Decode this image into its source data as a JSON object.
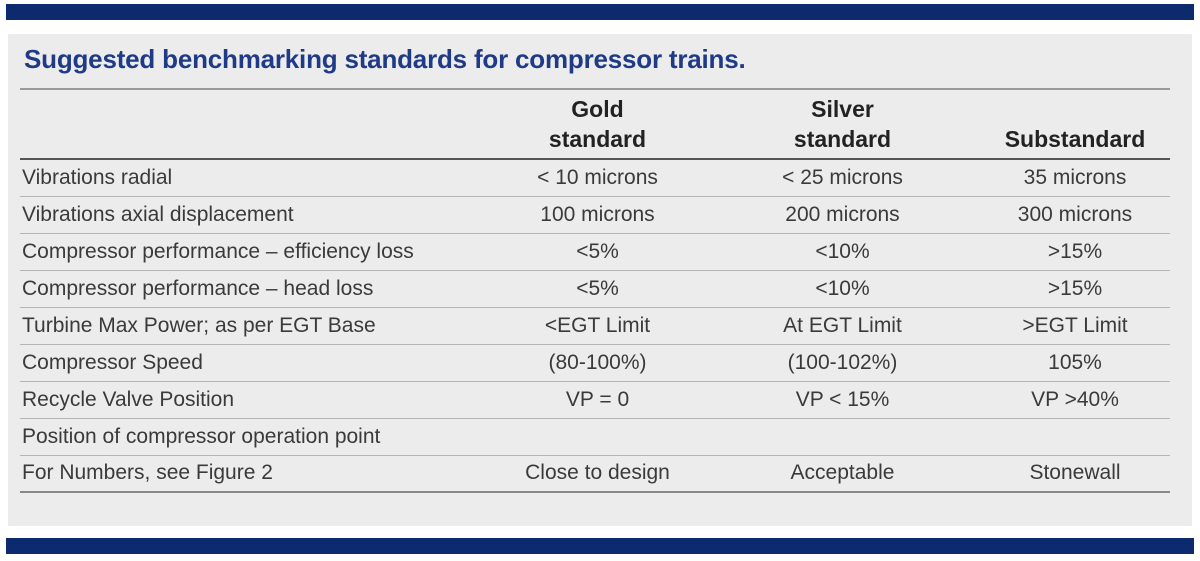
{
  "title": "Suggested benchmarking standards for compressor trains.",
  "columns": {
    "gold_line1": "Gold",
    "gold_line2": "standard",
    "silver_line1": "Silver",
    "silver_line2": "standard",
    "sub": "Substandard"
  },
  "rows": [
    {
      "label": "Vibrations radial",
      "gold": "< 10 microns",
      "silver": "< 25 microns",
      "sub": "35 microns"
    },
    {
      "label": "Vibrations axial displacement",
      "gold": "100 microns",
      "silver": "200 microns",
      "sub": "300 microns"
    },
    {
      "label": "Compressor performance – efficiency loss",
      "gold": "<5%",
      "silver": "<10%",
      "sub": ">15%"
    },
    {
      "label": "Compressor performance – head loss",
      "gold": "<5%",
      "silver": "<10%",
      "sub": ">15%"
    },
    {
      "label": "Turbine Max Power; as per EGT Base",
      "gold": "<EGT Limit",
      "silver": "At EGT Limit",
      "sub": ">EGT Limit"
    },
    {
      "label": "Compressor Speed",
      "gold": "(80-100%)",
      "silver": "(100-102%)",
      "sub": "105%"
    },
    {
      "label": "Recycle Valve Position",
      "gold": "VP = 0",
      "silver": "VP < 15%",
      "sub": "VP >40%"
    },
    {
      "label": "Position of compressor operation point",
      "gold": "",
      "silver": "",
      "sub": ""
    },
    {
      "label": "For Numbers, see Figure 2",
      "gold": "Close to design",
      "silver": "Acceptable",
      "sub": "Stonewall"
    }
  ]
}
